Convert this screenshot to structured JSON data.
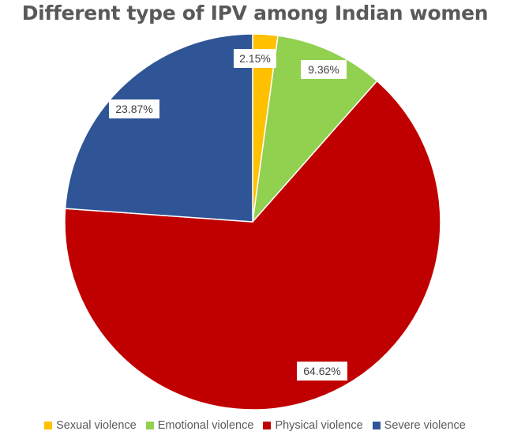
{
  "chart_data": {
    "type": "pie",
    "title": "Different type of IPV among Indian women",
    "labels": [
      "Sexual violence",
      "Emotional violence",
      "Physical violence",
      "Severe violence"
    ],
    "values": [
      2.15,
      9.36,
      64.62,
      23.87
    ],
    "data_labels": [
      "2.15%",
      "9.36%",
      "64.62%",
      "23.87%"
    ],
    "colors": [
      "#FFC000",
      "#92D050",
      "#C00000",
      "#2F5597"
    ],
    "legend": "bottom"
  }
}
